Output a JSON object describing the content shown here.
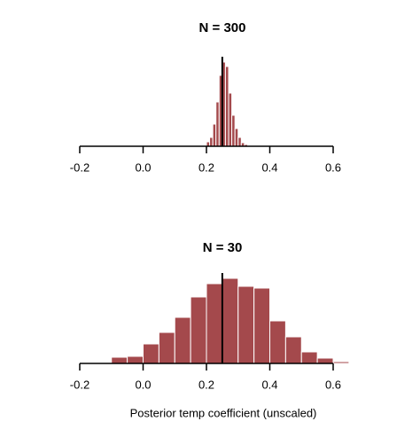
{
  "chart_data": [
    {
      "type": "histogram",
      "title": "N = 300",
      "bins": [
        0.2,
        0.21,
        0.22,
        0.23,
        0.24,
        0.25,
        0.26,
        0.27,
        0.28,
        0.29,
        0.3,
        0.31,
        0.32,
        0.33
      ],
      "values": [
        5,
        10,
        25,
        50,
        80,
        95,
        90,
        60,
        35,
        20,
        10,
        4,
        2
      ],
      "color": "#a4494c",
      "vline": 0.25,
      "xlim": [
        -0.2,
        0.6
      ],
      "xticks": [
        -0.2,
        {
          "value": 0,
          "label": "0.0"
        },
        0.2,
        0.4,
        0.6
      ]
    },
    {
      "type": "histogram",
      "title": "N = 30",
      "x_label": "Posterior temp coefficient (unscaled)",
      "bins": [
        -0.1,
        -0.05,
        0,
        0.05,
        0.1,
        0.15,
        0.2,
        0.25,
        0.3,
        0.35,
        0.4,
        0.45,
        0.5,
        0.55,
        0.6,
        0.65
      ],
      "values": [
        7,
        8,
        22,
        35,
        52,
        75,
        90,
        96,
        87,
        85,
        48,
        30,
        13,
        6,
        2
      ],
      "color": "#a4494c",
      "vline": 0.25,
      "xlim": [
        -0.2,
        0.6
      ],
      "xticks": [
        -0.2,
        {
          "value": 0,
          "label": "0.0"
        },
        0.2,
        0.4,
        0.6
      ]
    }
  ]
}
